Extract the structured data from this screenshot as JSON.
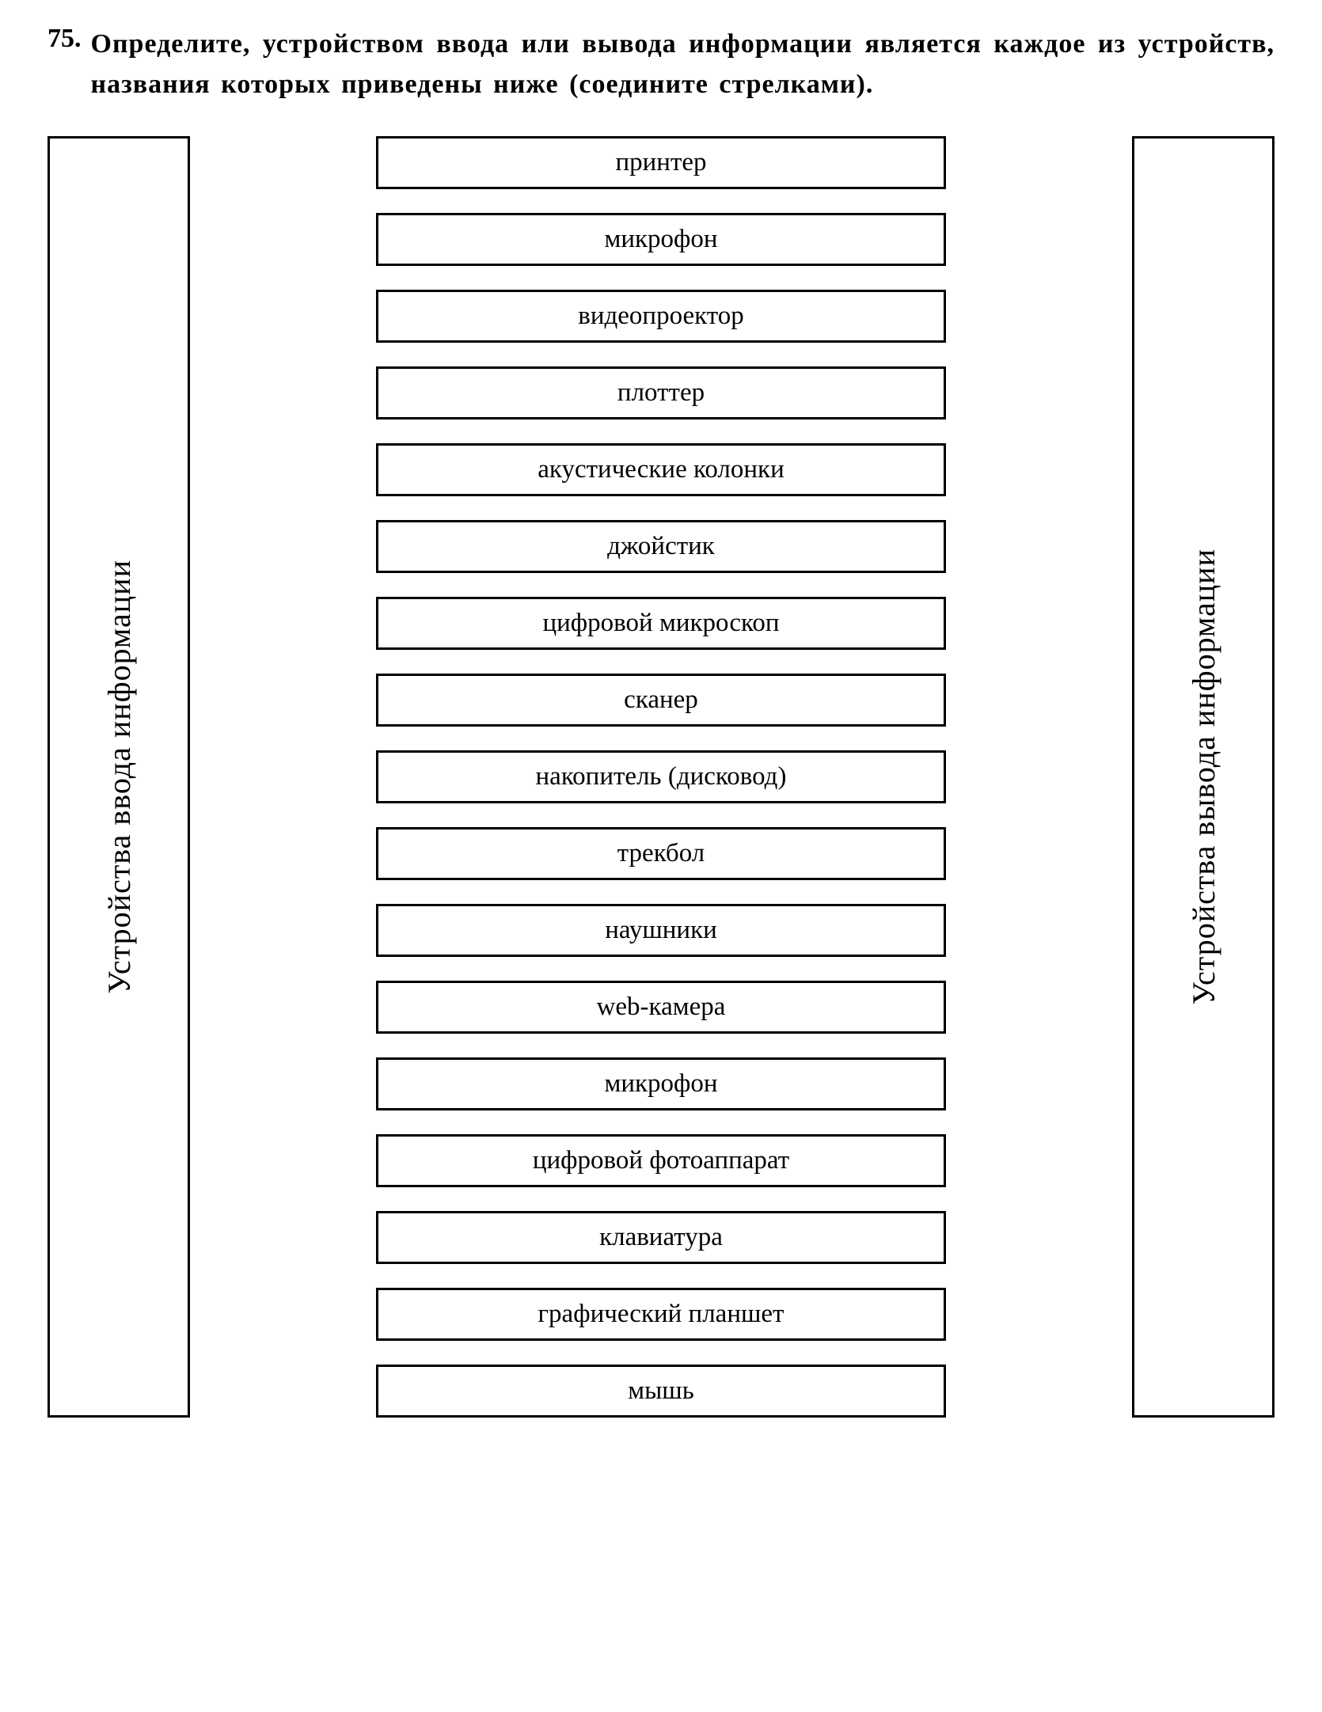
{
  "question": {
    "number": "75.",
    "text": "Определите, устройством ввода или вывода информации является каждое из устройств, названия которых приведены ниже (соедините стрелками)."
  },
  "categories": {
    "left": "Устройства ввода информации",
    "right": "Устройства вывода информации"
  },
  "devices": [
    "принтер",
    "микрофон",
    "видеопроектор",
    "плоттер",
    "акустические колонки",
    "джойстик",
    "цифровой микроскоп",
    "сканер",
    "накопитель (дисковод)",
    "трекбол",
    "наушники",
    "web-камера",
    "микрофон",
    "цифровой фотоаппарат",
    "клавиатура",
    "графический планшет",
    "мышь"
  ],
  "styling": {
    "border_color": "#000000",
    "border_width": 3,
    "background_color": "#ffffff",
    "text_color": "#000000",
    "question_fontsize": 34,
    "device_fontsize": 33,
    "category_fontsize": 40,
    "device_box_gap": 30,
    "column_gap": 120,
    "category_box_width": 180,
    "devices_max_width": 720
  }
}
